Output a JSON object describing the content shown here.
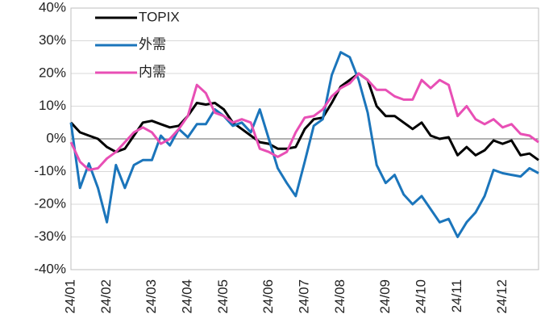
{
  "chart_data": {
    "type": "line",
    "categories": [
      "24/01",
      null,
      null,
      null,
      "24/02",
      null,
      null,
      null,
      null,
      "24/03",
      null,
      null,
      null,
      "24/04",
      null,
      null,
      null,
      "24/05",
      null,
      null,
      null,
      null,
      "24/06",
      null,
      null,
      null,
      "24/07",
      null,
      null,
      null,
      "24/08",
      null,
      null,
      null,
      null,
      "24/09",
      null,
      null,
      null,
      "24/10",
      null,
      null,
      null,
      "24/11",
      null,
      null,
      null,
      null,
      "24/12",
      null,
      null,
      null,
      null
    ],
    "series": [
      {
        "name": "TOPIX",
        "color": "#000000",
        "values": [
          5,
          2,
          1,
          0,
          -2.5,
          -4,
          -3,
          1,
          5,
          5.5,
          4.5,
          3.5,
          4,
          7,
          11,
          10.5,
          11,
          9,
          5,
          3,
          1,
          -1,
          -1.5,
          -3,
          -3,
          -2.5,
          3,
          6,
          6.5,
          11,
          16,
          18,
          20,
          18,
          10,
          7,
          7,
          5,
          3,
          5,
          1,
          0,
          0.5,
          -5,
          -2.5,
          -5,
          -3.5,
          -0.5,
          -1.5,
          -0.5,
          -5,
          -4.5,
          -6.5
        ]
      },
      {
        "name": "外需",
        "color": "#1b75bb",
        "values": [
          5,
          -15,
          -7.5,
          -15,
          -25.5,
          -8,
          -15,
          -8,
          -6.5,
          -6.5,
          1,
          -2,
          3,
          0.5,
          4.5,
          4.5,
          9,
          7,
          4,
          5,
          2,
          9,
          0,
          -9,
          -13.5,
          -17.5,
          -7,
          4,
          6,
          19.5,
          26.5,
          25,
          18,
          8,
          -8,
          -13.5,
          -11,
          -17,
          -20,
          -17.5,
          -21.5,
          -25.5,
          -24.5,
          -30,
          -25.5,
          -22.5,
          -17.5,
          -9.5,
          -10.5,
          -11,
          -11.5,
          -9,
          -10.5
        ]
      },
      {
        "name": "内需",
        "color": "#e84fb5",
        "values": [
          -1,
          -7,
          -9.5,
          -9,
          -6,
          -4,
          -1,
          2,
          3.5,
          2,
          -1.5,
          0,
          3,
          7,
          16.5,
          14,
          8,
          7,
          5,
          6,
          5,
          -3,
          -4,
          -5.5,
          -4,
          2,
          6.5,
          7,
          9,
          13,
          15.5,
          17,
          20,
          18,
          15,
          15,
          13,
          12,
          12,
          18,
          15.5,
          18,
          16.5,
          7,
          10,
          6,
          4.5,
          6,
          3.5,
          4.5,
          1.5,
          1,
          -1
        ]
      }
    ],
    "ylim": [
      -40,
      40
    ],
    "yticks": [
      {
        "value": -40,
        "label": "-40%"
      },
      {
        "value": -30,
        "label": "-30%"
      },
      {
        "value": -20,
        "label": "-20%"
      },
      {
        "value": -10,
        "label": "-10%"
      },
      {
        "value": 0,
        "label": "0%"
      },
      {
        "value": 10,
        "label": "10%"
      },
      {
        "value": 20,
        "label": "20%"
      },
      {
        "value": 30,
        "label": "30%"
      },
      {
        "value": 40,
        "label": "40%"
      }
    ],
    "grid": true,
    "legend": "upper-left"
  }
}
